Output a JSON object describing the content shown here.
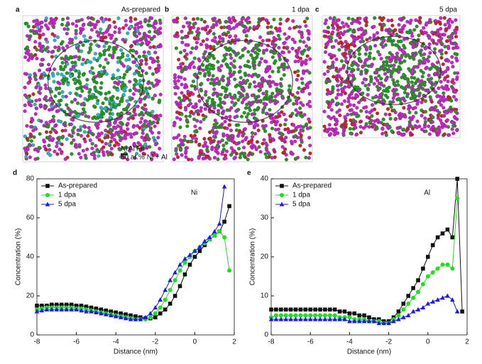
{
  "panels": [
    {
      "letter": "a",
      "label": "As-prepared"
    },
    {
      "letter": "b",
      "label": "1 dpa"
    },
    {
      "letter": "c",
      "label": "5 dpa"
    }
  ],
  "atom_legend": [
    {
      "name": "Ni",
      "color": "#33cccc"
    },
    {
      "name": "Al",
      "color": "#33cc33"
    },
    {
      "name": "Fe",
      "color": "#cc33cc"
    }
  ],
  "isosurface_label": "50 at.% Ni + Al",
  "chart_data": [
    {
      "type": "line",
      "panel_letter": "d",
      "annotation": "Ni",
      "x_label": "Distance (nm)",
      "y_label": "Concentration (%)",
      "xlim": [
        -8,
        2
      ],
      "xticks": [
        -8,
        -6,
        -4,
        -2,
        0,
        2
      ],
      "ylim": [
        0,
        80
      ],
      "yticks": [
        0,
        20,
        40,
        60,
        80
      ],
      "legend": "upper left",
      "x": [
        -8,
        -7.75,
        -7.5,
        -7.25,
        -7,
        -6.75,
        -6.5,
        -6.25,
        -6,
        -5.75,
        -5.5,
        -5.25,
        -5,
        -4.75,
        -4.5,
        -4.25,
        -4,
        -3.75,
        -3.5,
        -3.25,
        -3,
        -2.75,
        -2.5,
        -2.25,
        -2,
        -1.75,
        -1.5,
        -1.25,
        -1,
        -0.75,
        -0.5,
        -0.25,
        0,
        0.25,
        0.5,
        0.75,
        1,
        1.25,
        1.5,
        1.75
      ],
      "series": [
        {
          "name": "As-prepared",
          "color": "#111111",
          "marker": "square",
          "values": [
            15,
            15,
            15,
            15.5,
            15.5,
            15.5,
            15.5,
            15.5,
            15,
            15,
            14.5,
            14,
            13.5,
            13,
            12.5,
            12,
            11.5,
            11,
            10.5,
            10,
            9.5,
            9,
            8.5,
            8.5,
            9,
            11,
            13,
            16,
            20,
            25,
            31,
            36,
            40,
            43,
            46,
            49,
            51,
            53,
            58,
            66
          ]
        },
        {
          "name": "1 dpa",
          "color": "#22dd22",
          "marker": "circle",
          "values": [
            13,
            13.5,
            14,
            14,
            14,
            14,
            14,
            14,
            13.5,
            13.5,
            13,
            12.5,
            12,
            11.5,
            11,
            10.5,
            10,
            9.5,
            9,
            8.5,
            8,
            8,
            8,
            9,
            11,
            14,
            18,
            23,
            28,
            33,
            37,
            40,
            43,
            45,
            47,
            49,
            51,
            53,
            50,
            33
          ]
        },
        {
          "name": "5 dpa",
          "color": "#1a1aee",
          "marker": "triangle",
          "values": [
            12,
            12.5,
            13,
            13,
            13,
            13,
            13,
            13,
            13,
            12.5,
            12,
            12,
            11.5,
            11,
            10.5,
            10,
            9.5,
            9,
            8.5,
            8,
            8,
            8,
            9,
            11,
            14,
            18,
            23,
            28,
            32,
            36,
            39,
            41,
            43,
            45,
            48,
            50,
            53,
            57,
            76,
            null
          ]
        }
      ]
    },
    {
      "type": "line",
      "panel_letter": "e",
      "annotation": "Al",
      "x_label": "Distance (nm)",
      "y_label": "Concentration (%)",
      "xlim": [
        -8,
        2
      ],
      "xticks": [
        -8,
        -6,
        -4,
        -2,
        0,
        2
      ],
      "ylim": [
        0,
        40
      ],
      "yticks": [
        0,
        10,
        20,
        30,
        40
      ],
      "legend": "upper left",
      "x": [
        -8,
        -7.75,
        -7.5,
        -7.25,
        -7,
        -6.75,
        -6.5,
        -6.25,
        -6,
        -5.75,
        -5.5,
        -5.25,
        -5,
        -4.75,
        -4.5,
        -4.25,
        -4,
        -3.75,
        -3.5,
        -3.25,
        -3,
        -2.75,
        -2.5,
        -2.25,
        -2,
        -1.75,
        -1.5,
        -1.25,
        -1,
        -0.75,
        -0.5,
        -0.25,
        0,
        0.25,
        0.5,
        0.75,
        1,
        1.25,
        1.5,
        1.75
      ],
      "series": [
        {
          "name": "As-prepared",
          "color": "#111111",
          "marker": "square",
          "values": [
            6.5,
            6.5,
            6.5,
            6.5,
            6.5,
            6.5,
            6.5,
            6.5,
            6.5,
            6.5,
            6.5,
            6.5,
            6.5,
            6.5,
            6,
            6,
            5.5,
            5.5,
            5,
            5,
            4.5,
            4,
            4,
            3.5,
            3.5,
            4.5,
            6,
            8,
            10,
            12,
            14,
            17,
            20,
            23,
            25,
            26,
            27,
            25,
            40,
            6
          ]
        },
        {
          "name": "1 dpa",
          "color": "#22dd22",
          "marker": "circle",
          "values": [
            4.5,
            5,
            5,
            5,
            5,
            5,
            5,
            5,
            5,
            5,
            5,
            5,
            5,
            5,
            4.5,
            4.5,
            4.5,
            4,
            4,
            4,
            3.5,
            3.5,
            3.5,
            3,
            3,
            4,
            5,
            6.5,
            8,
            9.5,
            11,
            13,
            15,
            16,
            17,
            18,
            18,
            17,
            35,
            null
          ]
        },
        {
          "name": "5 dpa",
          "color": "#1a1aee",
          "marker": "triangle",
          "values": [
            4,
            4,
            4,
            4,
            4,
            4,
            4,
            4,
            4,
            4,
            4,
            4,
            4,
            4,
            4,
            4,
            3.5,
            3.5,
            3.5,
            3.5,
            3.5,
            3.5,
            3,
            3,
            3,
            3.5,
            4,
            4.5,
            5,
            6,
            6.5,
            7,
            8,
            8.5,
            9,
            9.5,
            10,
            9,
            6,
            null
          ]
        }
      ]
    }
  ]
}
